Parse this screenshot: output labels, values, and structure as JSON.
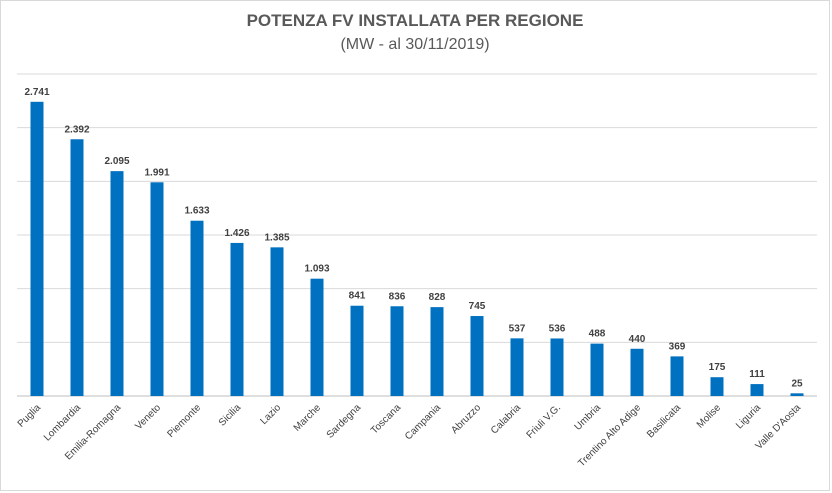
{
  "chart_data": {
    "type": "bar",
    "title": "POTENZA FV INSTALLATA PER REGIONE",
    "subtitle": "(MW - al 30/11/2019)",
    "categories": [
      "Puglia",
      "Lombardia",
      "Emilia-Romagna",
      "Veneto",
      "Piemonte",
      "Sicilia",
      "Lazio",
      "Marche",
      "Sardegna",
      "Toscana",
      "Campania",
      "Abruzzo",
      "Calabria",
      "Friuli V.G.",
      "Umbria",
      "Trentino Alto Adige",
      "Basilicata",
      "Molise",
      "Liguria",
      "Valle D'Aosta"
    ],
    "values": [
      2741,
      2392,
      2095,
      1991,
      1633,
      1426,
      1385,
      1093,
      841,
      836,
      828,
      745,
      537,
      536,
      488,
      440,
      369,
      175,
      111,
      25
    ],
    "value_labels": [
      "2.741",
      "2.392",
      "2.095",
      "1.991",
      "1.633",
      "1.426",
      "1.385",
      "1.093",
      "841",
      "836",
      "828",
      "745",
      "537",
      "536",
      "488",
      "440",
      "369",
      "175",
      "111",
      "25"
    ],
    "ylim": [
      0,
      3000
    ],
    "grid": true,
    "bar_color": "#0070c0"
  }
}
